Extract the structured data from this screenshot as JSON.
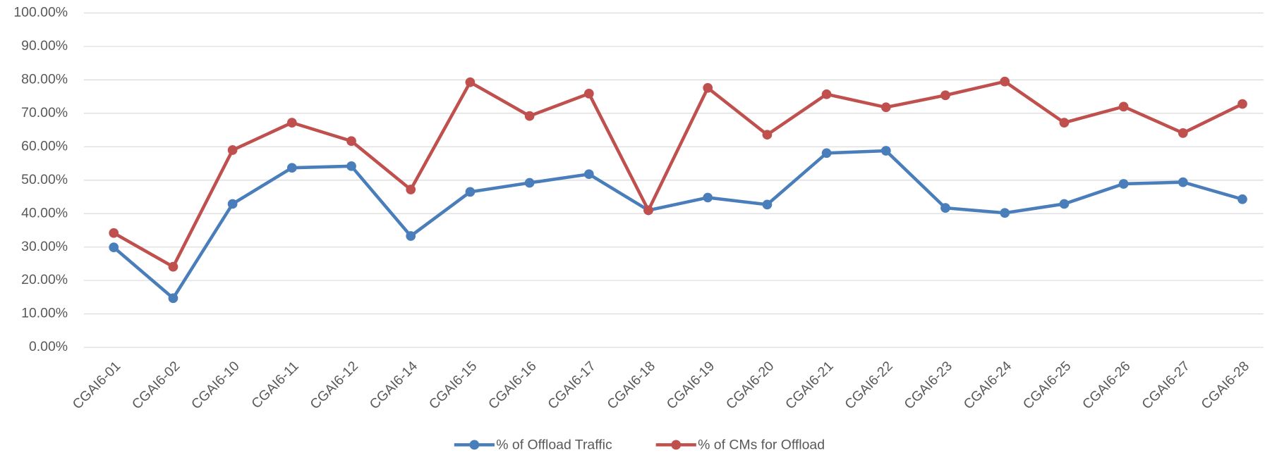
{
  "chart_data": {
    "type": "line",
    "categories": [
      "CGAI6-01",
      "CGAI6-02",
      "CGAI6-10",
      "CGAI6-11",
      "CGAI6-12",
      "CGAI6-14",
      "CGAI6-15",
      "CGAI6-16",
      "CGAI6-17",
      "CGAI6-18",
      "CGAI6-19",
      "CGAI6-20",
      "CGAI6-21",
      "CGAI6-22",
      "CGAI6-23",
      "CGAI6-24",
      "CGAI6-25",
      "CGAI6-26",
      "CGAI6-27",
      "CGAI6-28"
    ],
    "series": [
      {
        "name": "% of Offload Traffic",
        "color": "#4a7ebb",
        "values": [
          29.9,
          14.7,
          42.9,
          53.7,
          54.2,
          33.3,
          46.5,
          49.2,
          51.8,
          41.0,
          44.8,
          42.7,
          58.1,
          58.8,
          41.7,
          40.2,
          42.9,
          48.9,
          49.4,
          44.3
        ]
      },
      {
        "name": "% of CMs for Offload",
        "color": "#c0504d",
        "values": [
          34.2,
          24.1,
          59.0,
          67.2,
          61.7,
          47.2,
          79.3,
          69.2,
          75.9,
          41.0,
          77.6,
          63.6,
          75.7,
          71.8,
          75.4,
          79.5,
          67.2,
          72.0,
          64.1,
          72.8
        ]
      }
    ],
    "ylim": [
      0,
      100
    ],
    "yticks": [
      {
        "value": 0,
        "label": "0.00%"
      },
      {
        "value": 10,
        "label": "10.00%"
      },
      {
        "value": 20,
        "label": "20.00%"
      },
      {
        "value": 30,
        "label": "30.00%"
      },
      {
        "value": 40,
        "label": "40.00%"
      },
      {
        "value": 50,
        "label": "50.00%"
      },
      {
        "value": 60,
        "label": "60.00%"
      },
      {
        "value": 70,
        "label": "70.00%"
      },
      {
        "value": 80,
        "label": "80.00%"
      },
      {
        "value": 90,
        "label": "90.00%"
      },
      {
        "value": 100,
        "label": "100.00%"
      }
    ],
    "grid": true,
    "legend": "bottom"
  }
}
